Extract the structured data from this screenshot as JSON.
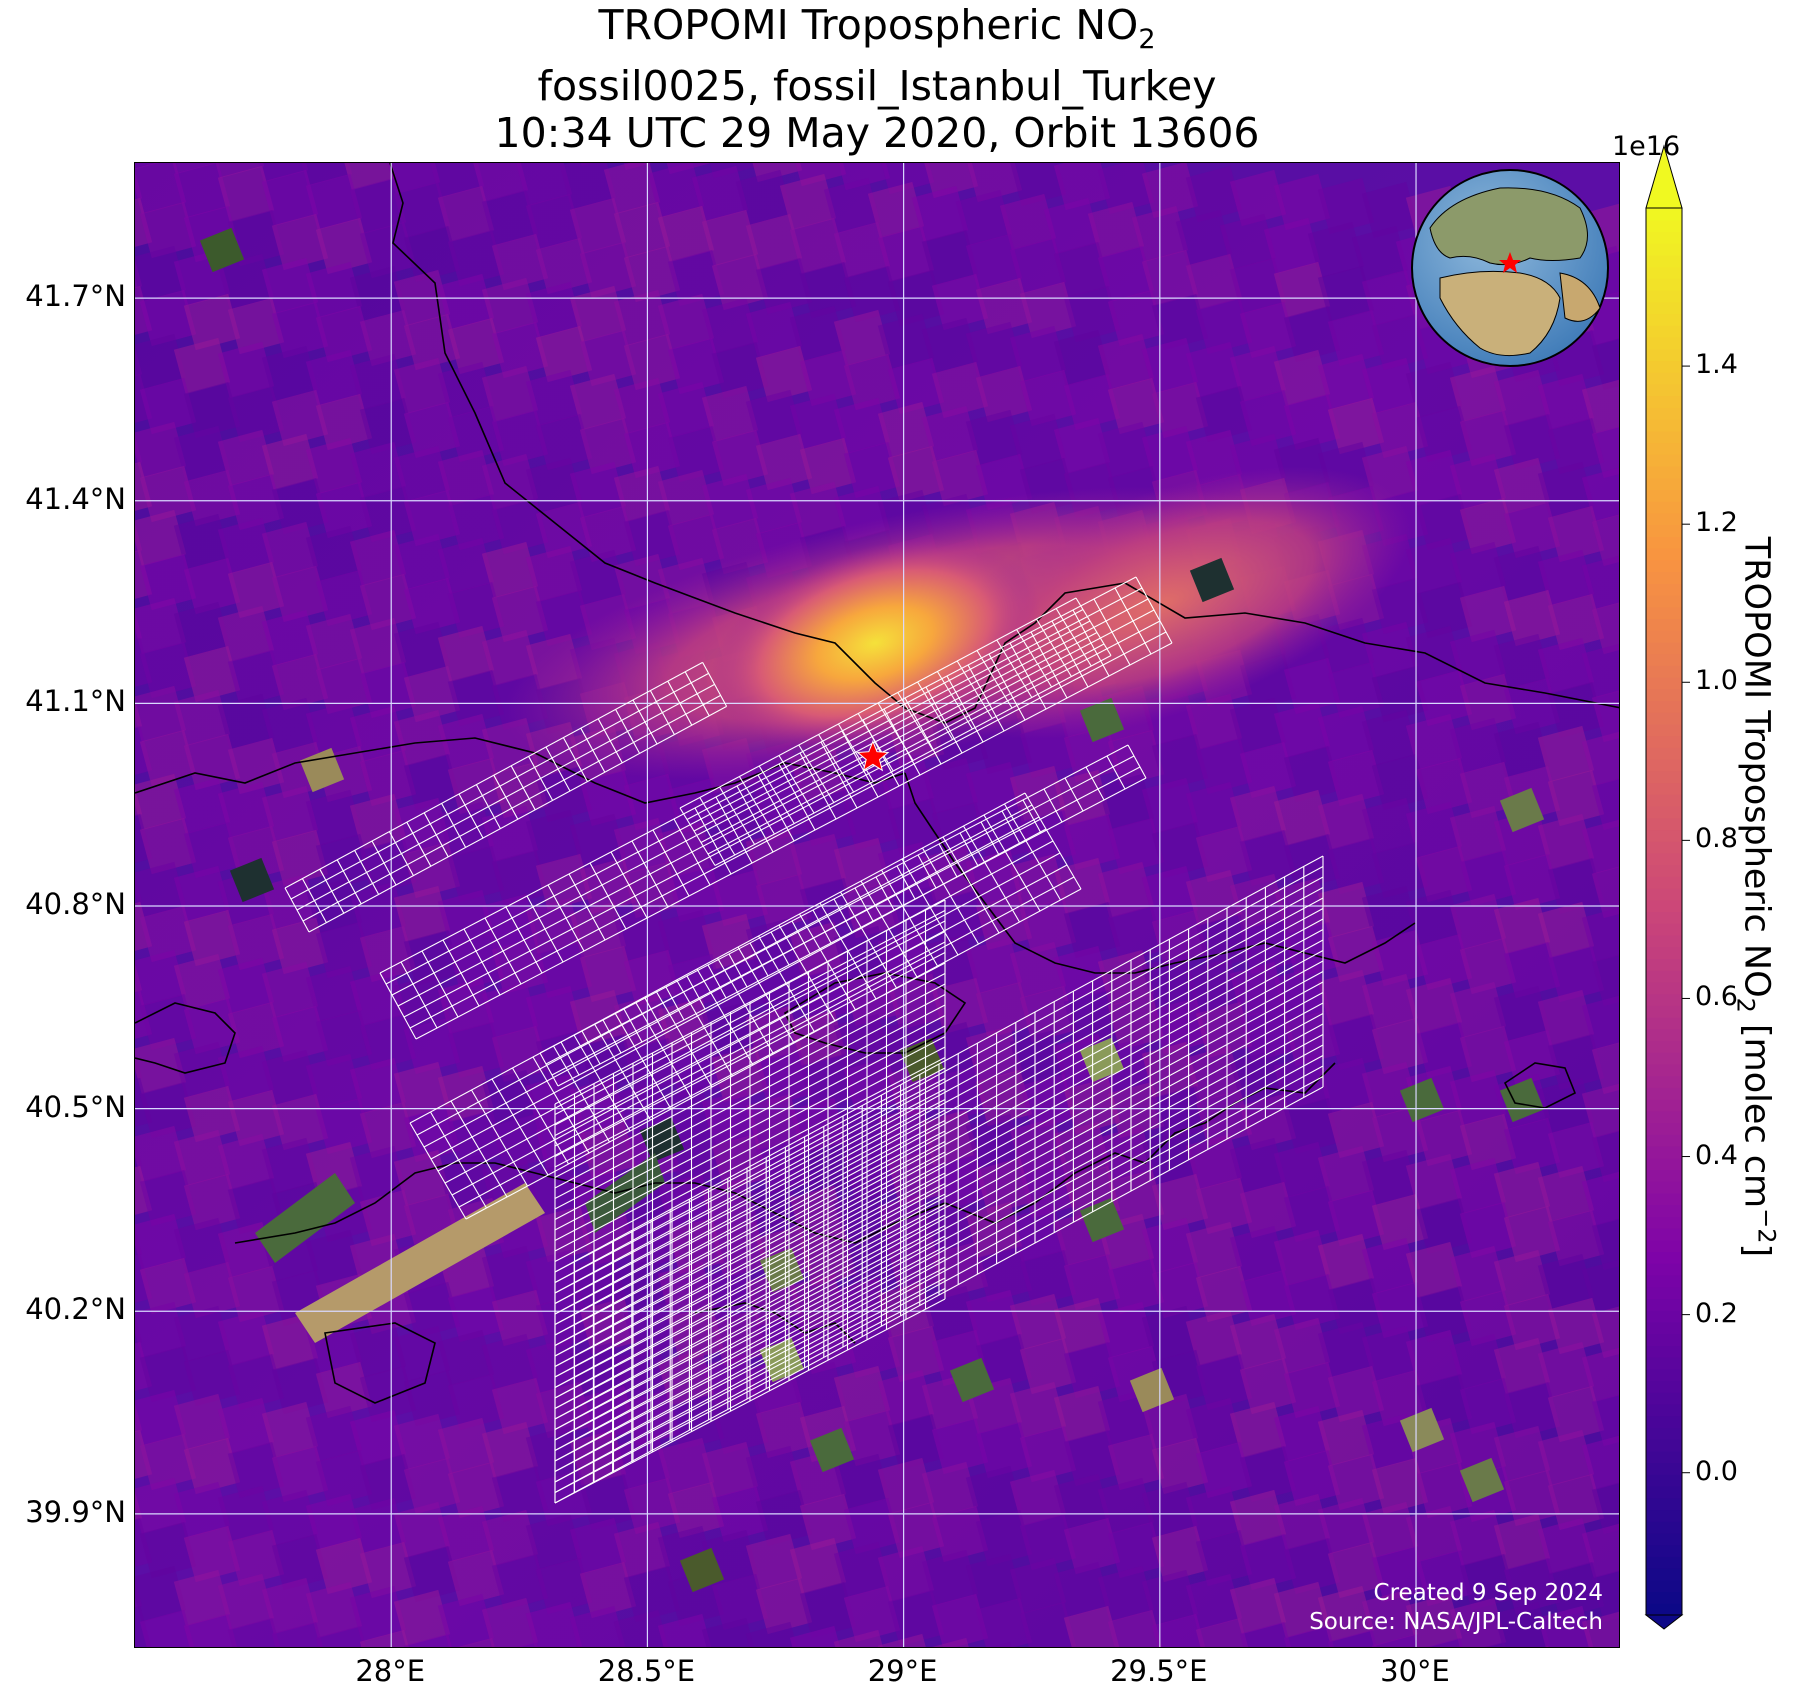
{
  "title": {
    "line1_prefix": "TROPOMI Tropospheric NO",
    "line1_sub": "2",
    "line2": "fossil0025, fossil_Istanbul_Turkey",
    "line3": "10:34 UTC 29 May 2020, Orbit 13606"
  },
  "map": {
    "lon_range": [
      27.5,
      30.4
    ],
    "lat_range": [
      39.7,
      41.9
    ],
    "lat_gridlines": [
      41.7,
      41.4,
      41.1,
      40.8,
      40.5,
      40.2,
      39.9
    ],
    "lon_gridlines": [
      28.0,
      28.5,
      29.0,
      29.5,
      30.0
    ],
    "lat_labels": [
      "41.7°N",
      "41.4°N",
      "41.1°N",
      "40.8°N",
      "40.5°N",
      "40.2°N",
      "39.9°N"
    ],
    "lon_labels": [
      "28°E",
      "28.5°E",
      "29°E",
      "29.5°E",
      "30°E"
    ],
    "target_marker": {
      "name": "fossil_Istanbul_Turkey",
      "lon": 28.94,
      "lat": 41.02,
      "color": "#ff0000"
    },
    "grid_line_color": "#d9d9ff",
    "footprint_color": "#ffffff",
    "coastline_color": "#000000"
  },
  "credit": {
    "line1": "Created 9 Sep 2024",
    "line2": "Source: NASA/JPL-Caltech"
  },
  "colorbar": {
    "colormap": "plasma",
    "vmin": -0.18,
    "vmax": 1.6,
    "extend": "both",
    "exponent_label": "1e16",
    "ticks": [
      0.0,
      0.2,
      0.4,
      0.6,
      0.8,
      1.0,
      1.2,
      1.4
    ],
    "tick_labels": [
      "0.0",
      "0.2",
      "0.4",
      "0.6",
      "0.8",
      "1.0",
      "1.2",
      "1.4"
    ],
    "label_prefix": "TROPOMI Tropospheric NO",
    "label_sub": "2",
    "label_suffix": " [molec cm",
    "label_sup": "−2",
    "label_end": "]"
  },
  "inset_globe": {
    "center_marker_color": "#ff0000"
  }
}
